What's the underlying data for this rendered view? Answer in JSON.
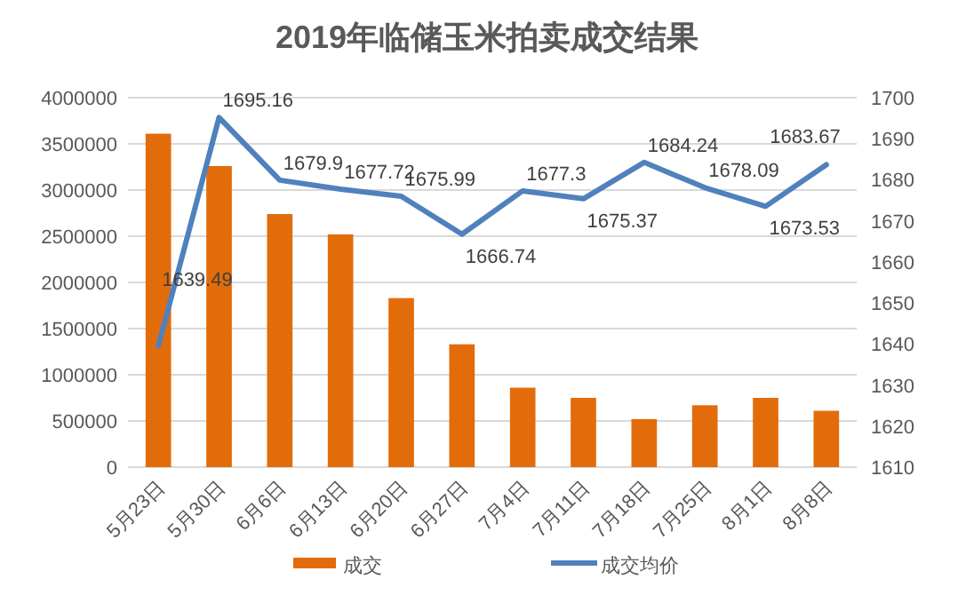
{
  "chart_data": {
    "type": "bar",
    "title": "2019年临储玉米拍卖成交结果",
    "categories": [
      "5月23日",
      "5月30日",
      "6月6日",
      "6月13日",
      "6月20日",
      "6月27日",
      "7月4日",
      "7月11日",
      "7月18日",
      "7月25日",
      "8月1日",
      "8月8日"
    ],
    "series": [
      {
        "name": "成交",
        "color": "#e36c0a",
        "values": [
          3610000,
          3260000,
          2740000,
          2520000,
          1830000,
          1330000,
          860000,
          750000,
          520000,
          670000,
          750000,
          610000
        ]
      },
      {
        "name": "成交均价",
        "type": "line",
        "axis": "y2",
        "color": "#4f81bd",
        "values": [
          1639.49,
          1695.16,
          1679.9,
          1677.72,
          1675.99,
          1666.74,
          1677.3,
          1675.37,
          1684.24,
          1678.09,
          1673.53,
          1683.67
        ],
        "value_labels": [
          "1639.49",
          "1695.16",
          "1679.9",
          "1677.72",
          "1675.99",
          "1666.74",
          "1677.3",
          "1675.37",
          "1684.24",
          "1678.09",
          "1673.53",
          "1683.67"
        ]
      }
    ],
    "ylim": [
      0,
      4000000
    ],
    "yticks": [
      0,
      500000,
      1000000,
      1500000,
      2000000,
      2500000,
      3000000,
      3500000,
      4000000
    ],
    "y2lim": [
      1610,
      1700
    ],
    "y2ticks": [
      1610,
      1620,
      1630,
      1640,
      1650,
      1660,
      1670,
      1680,
      1690,
      1700
    ],
    "grid": "y",
    "legend": "bottom",
    "line_style": "solid",
    "marker": "none"
  }
}
